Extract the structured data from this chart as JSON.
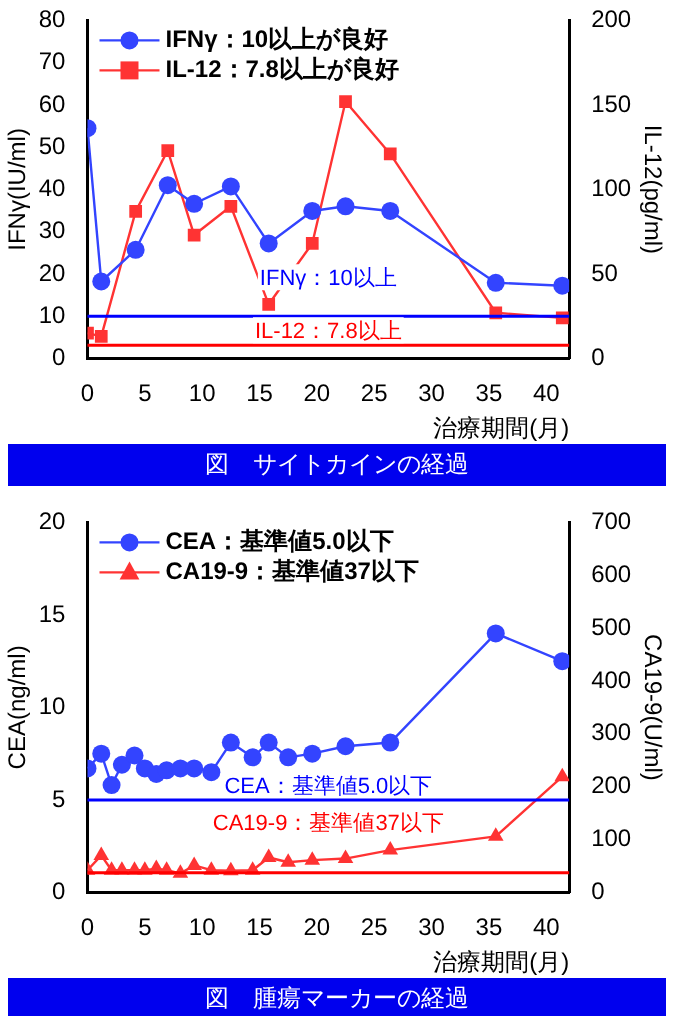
{
  "chart_data": [
    {
      "type": "line",
      "title": "図　サイトカインの経過",
      "xlabel": "治療期間(月)",
      "ylabel": "IFNγ(IU/ml)",
      "y2label": "IL-12(pg/ml)",
      "x": [
        0,
        1.2,
        4.2,
        7,
        9.3,
        12.5,
        15.8,
        19.6,
        22.5,
        26.4,
        35.6,
        41.4
      ],
      "xlim": [
        0,
        42
      ],
      "xticks": [
        0,
        5,
        10,
        15,
        20,
        25,
        30,
        35,
        40
      ],
      "ylim": [
        0,
        80
      ],
      "yticks": [
        0,
        10,
        20,
        30,
        40,
        50,
        60,
        70,
        80
      ],
      "y2lim": [
        0,
        200
      ],
      "y2ticks": [
        0,
        50,
        100,
        150,
        200
      ],
      "legend": "top left",
      "series": [
        {
          "name": "IFNγ：10以上が良好",
          "color": "#3344ff",
          "marker": "circle",
          "values": [
            54.5,
            18.2,
            25.7,
            41,
            36.6,
            40.7,
            27.2,
            34.9,
            36,
            34.9,
            17.9,
            17.2
          ]
        },
        {
          "name": "IL-12：7.8以上が良好",
          "color": "#ff3333",
          "marker": "square",
          "axis": "y2",
          "values": [
            15,
            13,
            87,
            123,
            73,
            90,
            32,
            68,
            152,
            121,
            27,
            24
          ]
        }
      ],
      "ref_lines": [
        {
          "axis": "y",
          "value": 10,
          "label": "IFNγ：10以上",
          "color": "#0000ff"
        },
        {
          "axis": "y2",
          "value": 7.8,
          "label": "IL-12：7.8以上",
          "color": "#ff0000"
        }
      ]
    },
    {
      "type": "line",
      "title": "図　腫瘍マーカーの経過",
      "xlabel": "治療期間(月)",
      "ylabel": "CEA(ng/ml)",
      "y2label": "CA19-9(U/ml)",
      "x": [
        0,
        1.2,
        2.1,
        3,
        4.1,
        5,
        6,
        6.9,
        8.1,
        9.3,
        10.8,
        12.5,
        14.4,
        15.8,
        17.5,
        19.6,
        22.5,
        26.4,
        35.6,
        41.4
      ],
      "xlim": [
        0,
        42
      ],
      "xticks": [
        0,
        5,
        10,
        15,
        20,
        25,
        30,
        35,
        40
      ],
      "ylim": [
        0,
        20
      ],
      "yticks": [
        0,
        5,
        10,
        15,
        20
      ],
      "y2lim": [
        0,
        700
      ],
      "y2ticks": [
        0,
        100,
        200,
        300,
        400,
        500,
        600,
        700
      ],
      "legend": "top left",
      "series": [
        {
          "name": "CEA：基準値5.0以下",
          "color": "#3344ff",
          "marker": "circle",
          "values": [
            6.7,
            7.5,
            5.8,
            6.9,
            7.4,
            6.7,
            6.4,
            6.6,
            6.7,
            6.7,
            6.5,
            8.1,
            7.3,
            8.1,
            7.3,
            7.5,
            7.9,
            8.1,
            14,
            12.5
          ]
        },
        {
          "name": "CA19-9：基準値37以下",
          "color": "#ff3333",
          "marker": "triangle",
          "axis": "y2",
          "values": [
            42,
            70,
            42,
            42,
            42,
            42,
            45,
            42,
            36,
            51,
            42,
            41,
            42,
            66,
            57,
            61,
            64,
            80,
            106,
            219
          ]
        }
      ],
      "ref_lines": [
        {
          "axis": "y",
          "value": 5,
          "label": "CEA：基準値5.0以下",
          "color": "#0000ff"
        },
        {
          "axis": "y2",
          "value": 37,
          "label": "CA19-9：基準値37以下",
          "color": "#ff0000"
        }
      ]
    }
  ]
}
